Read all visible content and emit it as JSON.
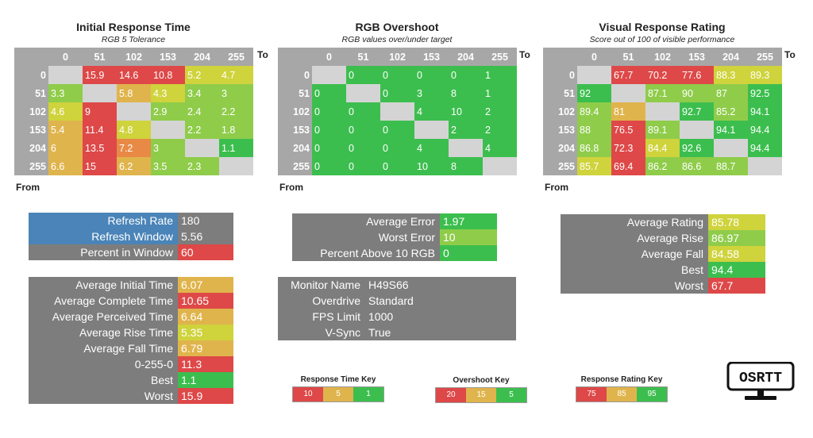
{
  "colors": {
    "green": "#3cbe4e",
    "lime": "#8fcc4a",
    "yellow": "#cfd33c",
    "amber": "#e0b44c",
    "orange": "#e88a46",
    "red": "#de4848",
    "stat_gray": "#7d7d7d",
    "stat_blue": "#4a84b8"
  },
  "labels": {
    "to": "To",
    "from": "From"
  },
  "chart_data": [
    {
      "type": "heatmap",
      "title": "Initial Response Time",
      "subtitle": "RGB 5 Tolerance",
      "xlabel": "To",
      "ylabel": "From",
      "x": [
        "0",
        "51",
        "102",
        "153",
        "204",
        "255"
      ],
      "y": [
        "0",
        "51",
        "102",
        "153",
        "204",
        "255"
      ],
      "values": [
        [
          "",
          "15.9",
          "14.6",
          "10.8",
          "5.2",
          "4.7"
        ],
        [
          "3.3",
          "",
          "5.8",
          "4.3",
          "3.4",
          "3"
        ],
        [
          "4.6",
          "9",
          "",
          "2.9",
          "2.4",
          "2.2"
        ],
        [
          "5.4",
          "11.4",
          "4.8",
          "",
          "2.2",
          "1.8"
        ],
        [
          "6",
          "13.5",
          "7.2",
          "3",
          "",
          "1.1"
        ],
        [
          "6.6",
          "15",
          "6.2",
          "3.5",
          "2.3",
          ""
        ]
      ],
      "colors": [
        [
          "",
          "red",
          "red",
          "red",
          "yellow",
          "yellow"
        ],
        [
          "lime",
          "",
          "amber",
          "yellow",
          "lime",
          "lime"
        ],
        [
          "yellow",
          "red",
          "",
          "lime",
          "lime",
          "lime"
        ],
        [
          "amber",
          "red",
          "yellow",
          "",
          "lime",
          "lime"
        ],
        [
          "amber",
          "red",
          "orange",
          "lime",
          "",
          "green"
        ],
        [
          "amber",
          "red",
          "amber",
          "lime",
          "lime",
          ""
        ]
      ]
    },
    {
      "type": "heatmap",
      "title": "RGB Overshoot",
      "subtitle": "RGB values over/under target",
      "xlabel": "To",
      "ylabel": "From",
      "x": [
        "0",
        "51",
        "102",
        "153",
        "204",
        "255"
      ],
      "y": [
        "0",
        "51",
        "102",
        "153",
        "204",
        "255"
      ],
      "values": [
        [
          "",
          "0",
          "0",
          "0",
          "0",
          "1"
        ],
        [
          "0",
          "",
          "0",
          "3",
          "8",
          "1"
        ],
        [
          "0",
          "0",
          "",
          "4",
          "10",
          "2"
        ],
        [
          "0",
          "0",
          "0",
          "",
          "2",
          "2"
        ],
        [
          "0",
          "0",
          "0",
          "4",
          "",
          "4"
        ],
        [
          "0",
          "0",
          "0",
          "10",
          "8",
          ""
        ]
      ],
      "colors": [
        [
          "",
          "green",
          "green",
          "green",
          "green",
          "green"
        ],
        [
          "green",
          "",
          "green",
          "green",
          "green",
          "green"
        ],
        [
          "green",
          "green",
          "",
          "green",
          "green",
          "green"
        ],
        [
          "green",
          "green",
          "green",
          "",
          "green",
          "green"
        ],
        [
          "green",
          "green",
          "green",
          "green",
          "",
          "green"
        ],
        [
          "green",
          "green",
          "green",
          "green",
          "green",
          ""
        ]
      ]
    },
    {
      "type": "heatmap",
      "title": "Visual Response Rating",
      "subtitle": "Score out of 100 of visible performance",
      "xlabel": "To",
      "ylabel": "From",
      "x": [
        "0",
        "51",
        "102",
        "153",
        "204",
        "255"
      ],
      "y": [
        "0",
        "51",
        "102",
        "153",
        "204",
        "255"
      ],
      "values": [
        [
          "",
          "67.7",
          "70.2",
          "77.6",
          "88.3",
          "89.3"
        ],
        [
          "92",
          "",
          "87.1",
          "90",
          "87",
          "92.5"
        ],
        [
          "89.4",
          "81",
          "",
          "92.7",
          "85.2",
          "94.1"
        ],
        [
          "88",
          "76.5",
          "89.1",
          "",
          "94.1",
          "94.4"
        ],
        [
          "86.8",
          "72.3",
          "84.4",
          "92.6",
          "",
          "94.4"
        ],
        [
          "85.7",
          "69.4",
          "86.2",
          "86.6",
          "88.7",
          ""
        ]
      ],
      "colors": [
        [
          "",
          "red",
          "red",
          "red",
          "yellow",
          "yellow"
        ],
        [
          "green",
          "",
          "lime",
          "lime",
          "lime",
          "green"
        ],
        [
          "lime",
          "amber",
          "",
          "green",
          "lime",
          "green"
        ],
        [
          "lime",
          "red",
          "lime",
          "",
          "green",
          "green"
        ],
        [
          "lime",
          "red",
          "yellow",
          "green",
          "",
          "green"
        ],
        [
          "yellow",
          "red",
          "lime",
          "lime",
          "lime",
          ""
        ]
      ]
    }
  ],
  "stats": {
    "refresh": [
      {
        "label": "Refresh Rate",
        "value": "180",
        "label_color": "stat_blue",
        "value_color": "stat_gray"
      },
      {
        "label": "Refresh Window",
        "value": "5.56",
        "label_color": "stat_blue",
        "value_color": "stat_gray"
      },
      {
        "label": "Percent in Window",
        "value": "60",
        "label_color": "stat_gray",
        "value_color": "red"
      }
    ],
    "response": [
      {
        "label": "Average Initial Time",
        "value": "6.07",
        "value_color": "amber"
      },
      {
        "label": "Average Complete Time",
        "value": "10.65",
        "value_color": "red"
      },
      {
        "label": "Average Perceived Time",
        "value": "6.64",
        "value_color": "amber"
      },
      {
        "label": "Average Rise Time",
        "value": "5.35",
        "value_color": "yellow"
      },
      {
        "label": "Average Fall Time",
        "value": "6.79",
        "value_color": "amber"
      },
      {
        "label": "0-255-0",
        "value": "11.3",
        "value_color": "red"
      },
      {
        "label": "Best",
        "value": "1.1",
        "value_color": "green"
      },
      {
        "label": "Worst",
        "value": "15.9",
        "value_color": "red"
      }
    ],
    "overshoot": [
      {
        "label": "Average Error",
        "value": "1.97",
        "value_color": "green"
      },
      {
        "label": "Worst Error",
        "value": "10",
        "value_color": "lime"
      },
      {
        "label": "Percent Above 10 RGB",
        "value": "0",
        "value_color": "green"
      }
    ],
    "monitor": [
      {
        "label": "Monitor Name",
        "value": "H49S66"
      },
      {
        "label": "Overdrive",
        "value": "Standard"
      },
      {
        "label": "FPS Limit",
        "value": "1000"
      },
      {
        "label": "V-Sync",
        "value": "True"
      }
    ],
    "rating": [
      {
        "label": "Average Rating",
        "value": "85.78",
        "value_color": "yellow"
      },
      {
        "label": "Average Rise",
        "value": "86.97",
        "value_color": "lime"
      },
      {
        "label": "Average Fall",
        "value": "84.58",
        "value_color": "yellow"
      },
      {
        "label": "Best",
        "value": "94.4",
        "value_color": "green"
      },
      {
        "label": "Worst",
        "value": "67.7",
        "value_color": "red"
      }
    ]
  },
  "keys": [
    {
      "title": "Response Time Key",
      "items": [
        {
          "value": "10",
          "color": "red"
        },
        {
          "value": "5",
          "color": "amber"
        },
        {
          "value": "1",
          "color": "green"
        }
      ]
    },
    {
      "title": "Overshoot Key",
      "items": [
        {
          "value": "20",
          "color": "red"
        },
        {
          "value": "15",
          "color": "amber"
        },
        {
          "value": "5",
          "color": "green"
        }
      ]
    },
    {
      "title": "Response Rating Key",
      "items": [
        {
          "value": "75",
          "color": "red"
        },
        {
          "value": "85",
          "color": "amber"
        },
        {
          "value": "95",
          "color": "green"
        }
      ]
    }
  ],
  "logo": {
    "text": "OSRTT",
    "icon": "monitor-icon"
  }
}
